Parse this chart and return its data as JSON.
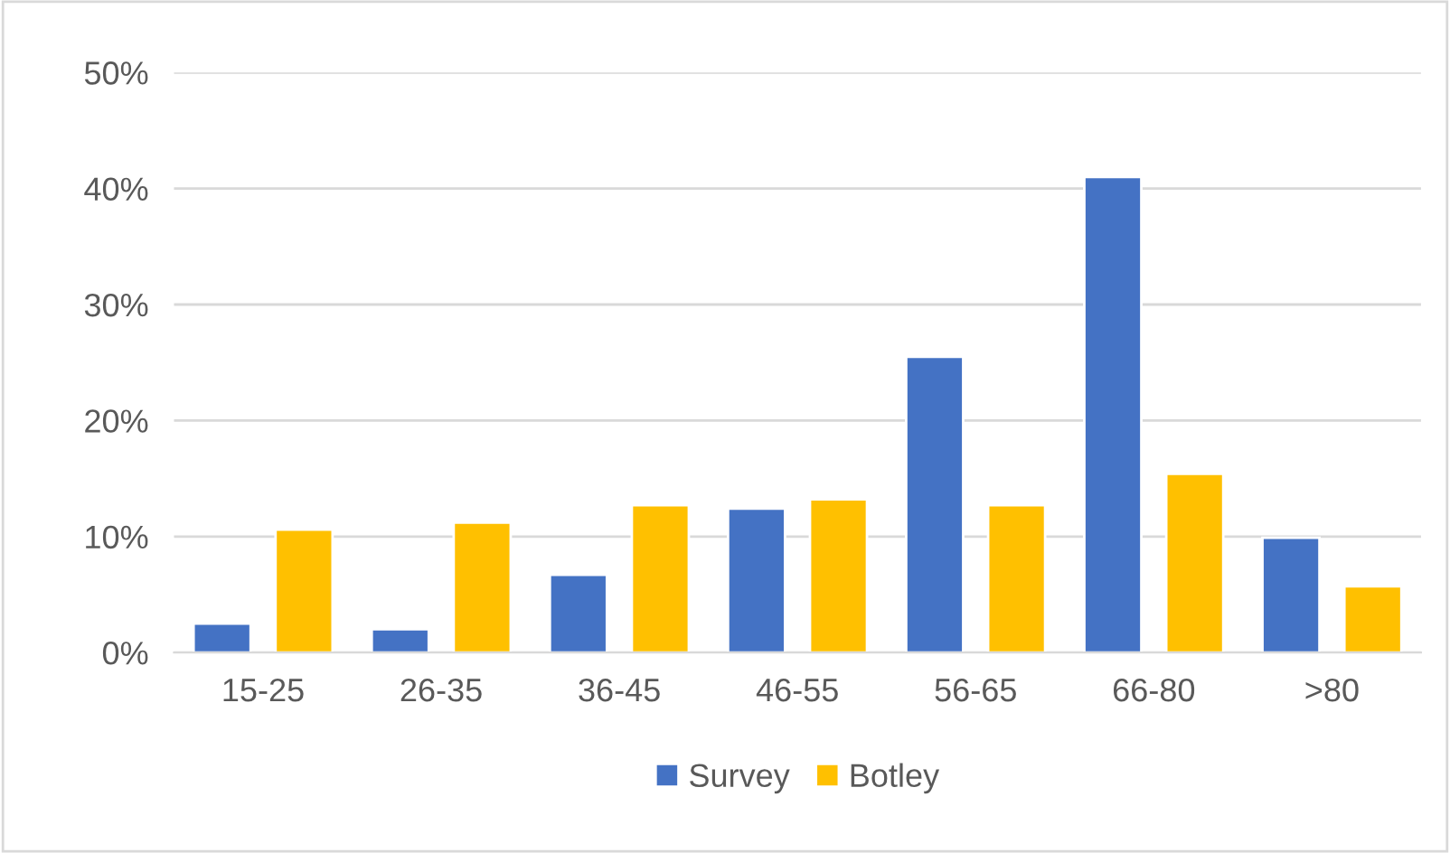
{
  "chart_data": {
    "type": "bar",
    "categories": [
      "15-25",
      "26-35",
      "36-45",
      "46-55",
      "56-65",
      "66-80",
      ">80"
    ],
    "series": [
      {
        "name": "Survey",
        "color": "#4472c4",
        "values": [
          2.5,
          2.0,
          6.7,
          12.4,
          25.5,
          41.0,
          9.9
        ]
      },
      {
        "name": "Botley",
        "color": "#ffc000",
        "values": [
          10.6,
          11.2,
          12.7,
          13.2,
          12.7,
          15.4,
          5.7
        ]
      }
    ],
    "ylim": [
      0,
      50
    ],
    "yticks": [
      {
        "value": 0,
        "label": "0%"
      },
      {
        "value": 10,
        "label": "10%"
      },
      {
        "value": 20,
        "label": "20%"
      },
      {
        "value": 30,
        "label": "30%"
      },
      {
        "value": 40,
        "label": "40%"
      },
      {
        "value": 50,
        "label": "50%"
      }
    ],
    "grid": "y",
    "legend": "bottom"
  }
}
